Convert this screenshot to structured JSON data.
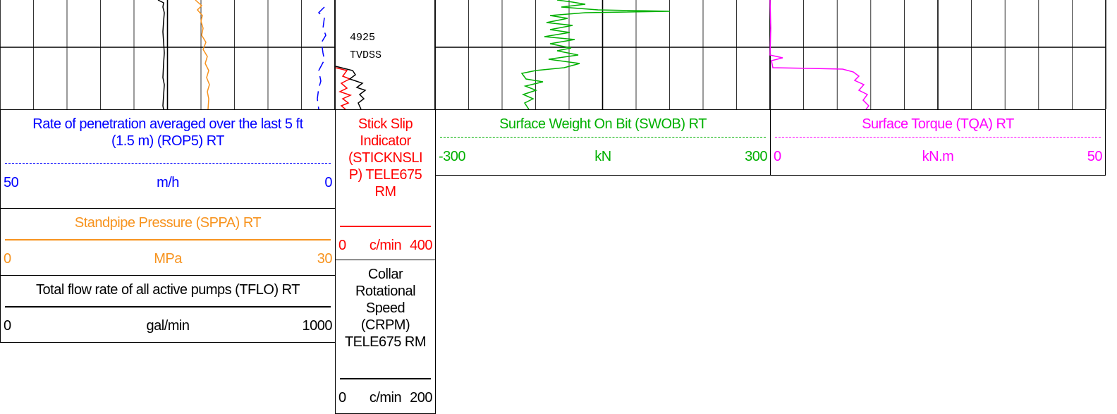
{
  "depth": {
    "value": "4925",
    "reference": "TVDSS"
  },
  "headers": {
    "rop": {
      "title_lines": [
        "Rate of penetration averaged over the last 5 ft",
        "(1.5 m) (ROP5) RT"
      ],
      "left": "50",
      "unit": "m/h",
      "right": "0"
    },
    "sppa": {
      "title_lines": [
        "Standpipe Pressure (SPPA) RT"
      ],
      "left": "0",
      "unit": "MPa",
      "right": "30"
    },
    "tflo": {
      "title_lines": [
        "Total flow rate of all active pumps (TFLO) RT"
      ],
      "left": "0",
      "unit": "gal/min",
      "right": "1000"
    },
    "stickslip": {
      "title_lines": [
        "Stick Slip",
        "Indicator",
        "(STICKNSLI",
        "P) TELE675",
        "RM"
      ],
      "left": "0",
      "unit": "c/min",
      "right": "400"
    },
    "crpm": {
      "title_lines": [
        "Collar",
        "Rotational",
        "Speed",
        "(CRPM)",
        "TELE675 RM"
      ],
      "left": "0",
      "unit": "c/min",
      "right": "200"
    },
    "swob": {
      "title_lines": [
        "Surface Weight On Bit (SWOB) RT"
      ],
      "left": "-300",
      "unit": "kN",
      "right": "300"
    },
    "tqa": {
      "title_lines": [
        "Surface Torque (TQA) RT"
      ],
      "left": "0",
      "unit": "kN.m",
      "right": "50"
    }
  }
}
